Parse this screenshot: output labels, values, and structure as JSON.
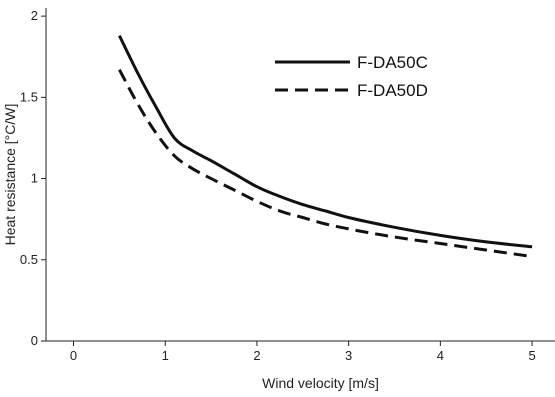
{
  "chart_data": {
    "type": "line",
    "title": "",
    "xlabel": "Wind velocity [m/s]",
    "ylabel": "Heat resistance [°C/W]",
    "xlim": [
      -0.3,
      5.25
    ],
    "ylim": [
      0,
      2.05
    ],
    "xticks": [
      0,
      1,
      2,
      3,
      4,
      5
    ],
    "yticks": [
      0,
      0.5,
      1,
      1.5,
      2
    ],
    "xtick_labels": [
      "0",
      "1",
      "2",
      "3",
      "4",
      "5"
    ],
    "ytick_labels": [
      "0",
      "0.5",
      "1",
      "1.5",
      "2"
    ],
    "grid": false,
    "legend_position": "top-right",
    "series": [
      {
        "name": "F-DA50C",
        "style": "solid",
        "color": "#111111",
        "x": [
          0.5,
          0.7,
          0.9,
          1.1,
          1.3,
          1.5,
          1.75,
          2.0,
          2.25,
          2.5,
          2.75,
          3.0,
          3.5,
          4.0,
          4.5,
          5.0
        ],
        "y": [
          1.88,
          1.65,
          1.44,
          1.25,
          1.17,
          1.11,
          1.03,
          0.95,
          0.89,
          0.84,
          0.8,
          0.76,
          0.7,
          0.65,
          0.61,
          0.58
        ]
      },
      {
        "name": "F-DA50D",
        "style": "dashed",
        "color": "#111111",
        "x": [
          0.5,
          0.7,
          0.9,
          1.1,
          1.3,
          1.5,
          1.75,
          2.0,
          2.25,
          2.5,
          2.75,
          3.0,
          3.5,
          4.0,
          4.5,
          5.0
        ],
        "y": [
          1.67,
          1.46,
          1.28,
          1.14,
          1.06,
          1.0,
          0.93,
          0.86,
          0.8,
          0.76,
          0.72,
          0.69,
          0.64,
          0.6,
          0.56,
          0.52
        ]
      }
    ]
  }
}
